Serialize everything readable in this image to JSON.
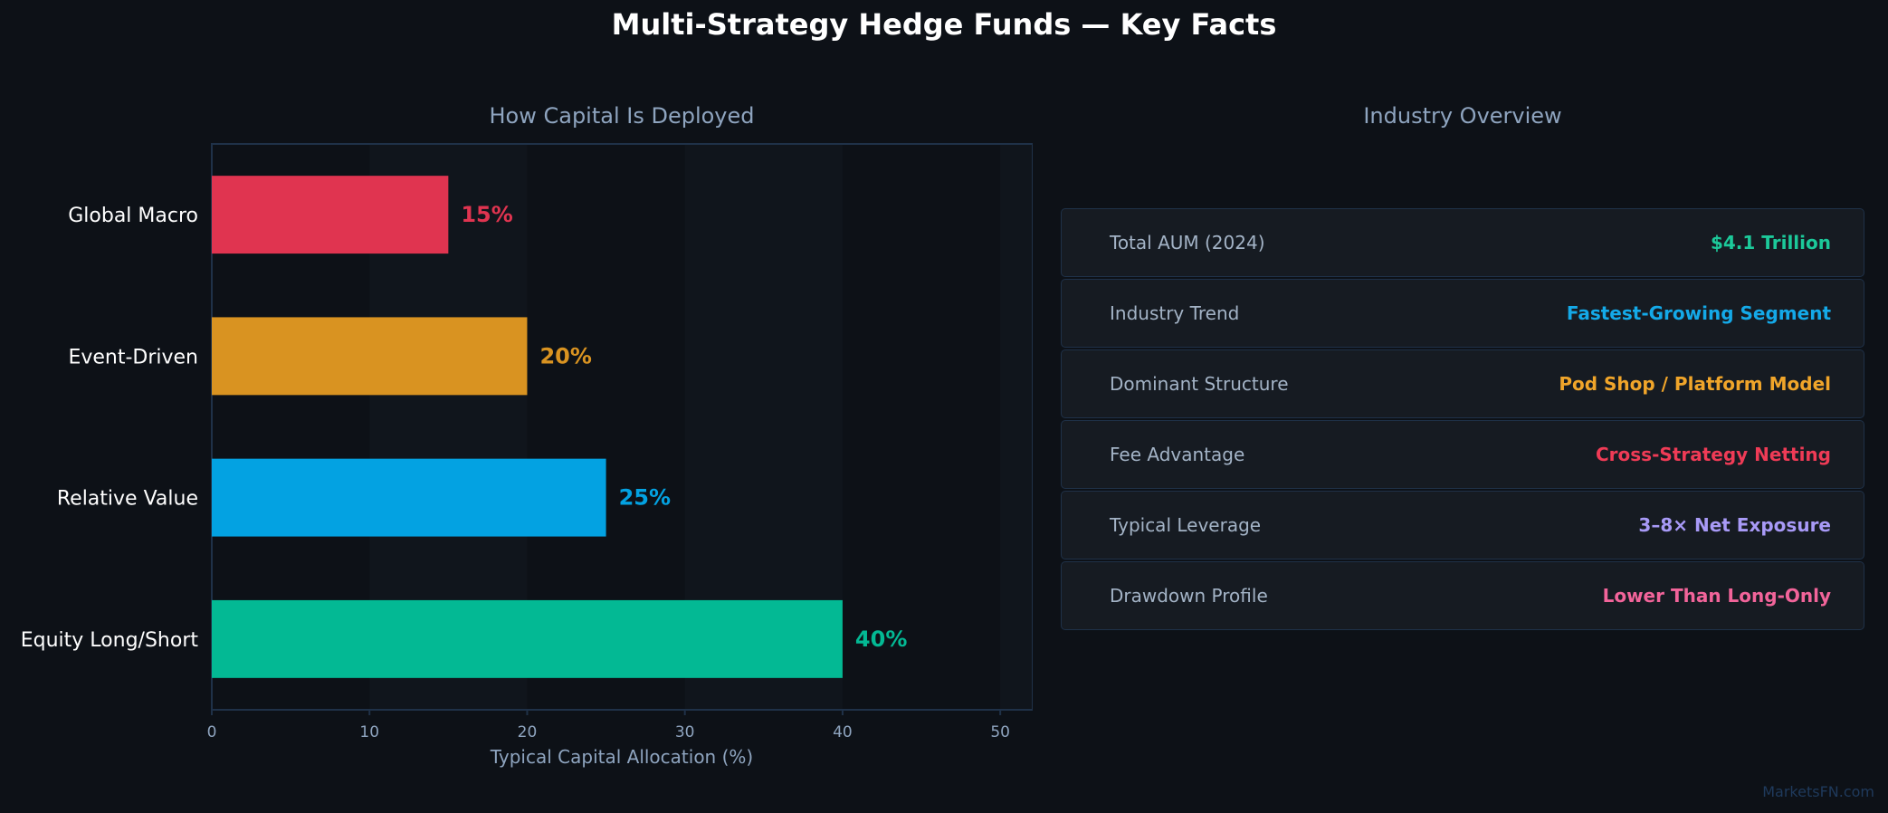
{
  "title": "Multi-Strategy Hedge Funds — Key Facts",
  "chart_data": {
    "type": "bar",
    "orientation": "horizontal",
    "title": "How Capital Is Deployed",
    "xlabel": "Typical Capital Allocation (%)",
    "ylabel": "",
    "categories": [
      "Global Macro",
      "Event-Driven",
      "Relative Value",
      "Equity Long/Short"
    ],
    "values": [
      15,
      20,
      25,
      40
    ],
    "data_labels": [
      "15%",
      "20%",
      "25%",
      "40%"
    ],
    "colors": [
      "#e03450",
      "#d99321",
      "#03a2e2",
      "#03b994"
    ],
    "xlim": [
      0,
      52
    ],
    "xticks": [
      0,
      10,
      20,
      30,
      40,
      50
    ],
    "grid": false
  },
  "overview": {
    "title": "Industry Overview",
    "rows": [
      {
        "label": "Total AUM (2024)",
        "value": "$4.1 Trillion",
        "color": "#1cc99a"
      },
      {
        "label": "Industry Trend",
        "value": "Fastest-Growing Segment",
        "color": "#14a9e8"
      },
      {
        "label": "Dominant Structure",
        "value": "Pod Shop / Platform Model",
        "color": "#f0a52a"
      },
      {
        "label": "Fee Advantage",
        "value": "Cross-Strategy Netting",
        "color": "#ef3b56"
      },
      {
        "label": "Typical Leverage",
        "value": "3–8× Net Exposure",
        "color": "#a89af7"
      },
      {
        "label": "Drawdown Profile",
        "value": "Lower Than Long-Only",
        "color": "#f2649a"
      }
    ]
  },
  "watermark": "MarketsFN.com"
}
